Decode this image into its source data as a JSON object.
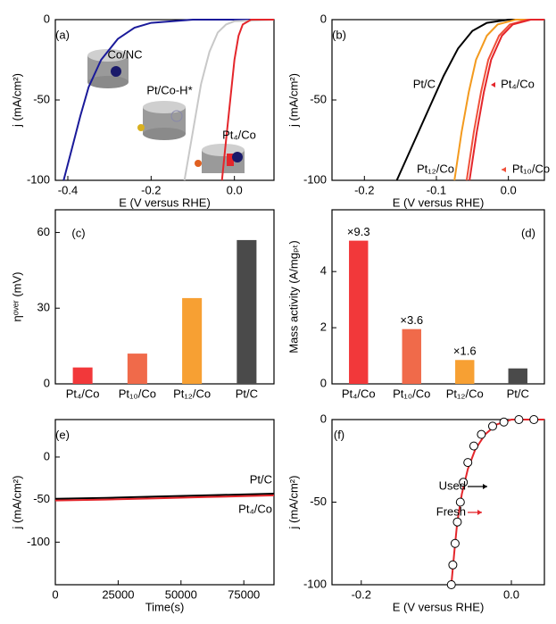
{
  "chart_data": [
    {
      "type": "line",
      "panel": "(a)",
      "x_label": "E (V versus RHE)",
      "y_label": "j (mA/cm²)",
      "xlim": [
        -0.43,
        0.095
      ],
      "xticks": [
        -0.4,
        -0.2,
        {
          "value": 0,
          "label": "0.0"
        }
      ],
      "ylim": [
        -100,
        0
      ],
      "yticks": [
        -100,
        -50,
        0
      ],
      "series": [
        {
          "name": "Co/NC",
          "color": "#1a1a9a",
          "mode": "line",
          "x": [
            -0.41,
            -0.39,
            -0.37,
            -0.35,
            -0.32,
            -0.28,
            -0.24,
            -0.2,
            -0.1,
            0.095
          ],
          "values": [
            -100,
            -80,
            -60,
            -42,
            -25,
            -12,
            -5,
            -2,
            0,
            0
          ]
        },
        {
          "name": "Pt/Co-H*",
          "color": "#c8c8c8",
          "mode": "line",
          "x": [
            -0.12,
            -0.1,
            -0.08,
            -0.06,
            -0.04,
            -0.02,
            0,
            0.095
          ],
          "values": [
            -100,
            -70,
            -40,
            -20,
            -8,
            -3,
            -1,
            0
          ]
        },
        {
          "name": "Pt₄/Co",
          "color": "#e4262b",
          "mode": "line",
          "x": [
            -0.03,
            -0.02,
            -0.01,
            0,
            0.01,
            0.02,
            0.04,
            0.095
          ],
          "values": [
            -100,
            -75,
            -50,
            -25,
            -10,
            -3,
            0,
            0
          ]
        }
      ]
    },
    {
      "type": "line",
      "panel": "(b)",
      "x_label": "E (V versus RHE)",
      "y_label": "j (mA/cm²)",
      "xlim": [
        -0.245,
        0.05
      ],
      "xticks": [
        -0.2,
        -0.1,
        {
          "value": 0,
          "label": "0.0"
        }
      ],
      "ylim": [
        -100,
        0
      ],
      "yticks": [
        -100,
        -50,
        0
      ],
      "series": [
        {
          "name": "Pt/C",
          "color": "#000000",
          "mode": "line",
          "x": [
            -0.155,
            -0.13,
            -0.11,
            -0.09,
            -0.07,
            -0.05,
            -0.03,
            0,
            0.05
          ],
          "values": [
            -100,
            -75,
            -55,
            -35,
            -18,
            -7,
            -2,
            0,
            0
          ]
        },
        {
          "name": "Pt₁₂/Co",
          "color": "#f39a1e",
          "mode": "line",
          "x": [
            -0.075,
            -0.065,
            -0.055,
            -0.045,
            -0.03,
            -0.015,
            0.01,
            0.05
          ],
          "values": [
            -100,
            -70,
            -45,
            -25,
            -10,
            -3,
            0,
            0
          ]
        },
        {
          "name": "Pt₁₀/Co",
          "color": "#f0503a",
          "mode": "line",
          "x": [
            -0.058,
            -0.048,
            -0.038,
            -0.028,
            -0.013,
            0.002,
            0.027,
            0.05
          ],
          "values": [
            -100,
            -70,
            -45,
            -25,
            -10,
            -3,
            0,
            0
          ]
        },
        {
          "name": "Pt₄/Co",
          "color": "#e4262b",
          "mode": "line",
          "x": [
            -0.054,
            -0.044,
            -0.034,
            -0.024,
            -0.009,
            0.006,
            0.031,
            0.05
          ],
          "values": [
            -100,
            -70,
            -45,
            -25,
            -10,
            -3,
            0,
            0
          ]
        }
      ]
    },
    {
      "type": "bar",
      "panel": "(c)",
      "y_label": "ηᵒᵛᵉʳ (mV)",
      "categories": [
        "Pt₄/Co",
        "Pt₁₀/Co",
        "Pt₁₂/Co",
        "Pt/C"
      ],
      "values": [
        6.5,
        12,
        34,
        57
      ],
      "colors": [
        "#f2383a",
        "#f06a4a",
        "#f7a033",
        "#4a4a4a"
      ],
      "ylim": [
        0,
        69
      ],
      "yticks": [
        0,
        30,
        60
      ]
    },
    {
      "type": "bar",
      "panel": "(d)",
      "y_label": "Mass activity (A/mgₚₜ)",
      "categories": [
        "Pt₄/Co",
        "Pt₁₀/Co",
        "Pt₁₂/Co",
        "Pt/C"
      ],
      "values": [
        5.1,
        1.95,
        0.85,
        0.55
      ],
      "colors": [
        "#f2383a",
        "#f06a4a",
        "#f7a033",
        "#4a4a4a"
      ],
      "annotations": [
        "×9.3",
        "×3.6",
        "×1.6"
      ],
      "ylim": [
        0,
        6.2
      ],
      "yticks": [
        0,
        2,
        4
      ]
    },
    {
      "type": "line",
      "panel": "(e)",
      "x_label": "Time(s)",
      "y_label": "j (mA/cm²)",
      "xlim": [
        0,
        87000
      ],
      "xticks": [
        0,
        25000,
        50000,
        75000
      ],
      "ylim": [
        -150,
        44
      ],
      "yticks": [
        -100,
        -50,
        0
      ],
      "series": [
        {
          "name": "Pt/C",
          "color": "#000000",
          "mode": "line",
          "x": [
            0,
            20000,
            40000,
            60000,
            87000
          ],
          "values": [
            -49,
            -48,
            -46.5,
            -45,
            -43
          ]
        },
        {
          "name": "Pt₄/Co",
          "color": "#e4262b",
          "mode": "line",
          "x": [
            0,
            20000,
            40000,
            60000,
            87000
          ],
          "values": [
            -51,
            -50,
            -48.5,
            -47,
            -45
          ]
        }
      ]
    },
    {
      "type": "line",
      "panel": "(f)",
      "x_label": "E (V versus RHE)",
      "y_label": "j (mA/cm²)",
      "xlim": [
        -0.239,
        0.044
      ],
      "xticks": [
        -0.2,
        {
          "value": 0,
          "label": "0.0"
        }
      ],
      "ylim": [
        -100,
        0
      ],
      "yticks": [
        -100,
        -50,
        0
      ],
      "series": [
        {
          "name": "Fresh",
          "color": "#e4262b",
          "mode": "line",
          "x": [
            -0.08,
            -0.076,
            -0.072,
            -0.066,
            -0.058,
            -0.048,
            -0.035,
            -0.02,
            0,
            0.044
          ],
          "values": [
            -100,
            -80,
            -62,
            -45,
            -30,
            -18,
            -9,
            -3,
            0,
            0
          ]
        },
        {
          "name": "Used",
          "color": "#000000",
          "mode": "markers",
          "x": [
            -0.08,
            -0.078,
            -0.075,
            -0.072,
            -0.068,
            -0.064,
            -0.058,
            -0.05,
            -0.04,
            -0.025,
            -0.01,
            0.01,
            0.03
          ],
          "values": [
            -100,
            -88,
            -75,
            -62,
            -50,
            -38,
            -26,
            -16,
            -9,
            -4,
            -1.5,
            0,
            0
          ]
        }
      ]
    }
  ]
}
